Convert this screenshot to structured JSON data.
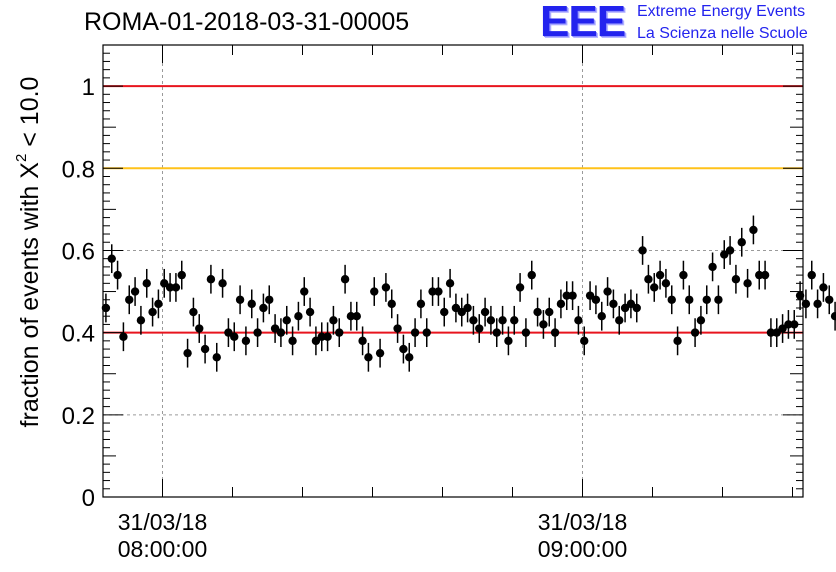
{
  "header": {
    "title": "ROMA-01-2018-03-31-00005",
    "logo_mark": "EEE",
    "logo_line1": "Extreme Energy Events",
    "logo_line2": "La Scienza nelle Scuole"
  },
  "colors": {
    "red_line": "#e8141e",
    "yellow_line": "#ffc21a",
    "points": "#000000",
    "grid": "#9a9a9a",
    "logo": "#2323ee"
  },
  "chart_data": {
    "type": "scatter",
    "title": "ROMA-01-2018-03-31-00005",
    "ylabel": "fraction of events with X² < 10.0",
    "ylabel_parts": {
      "main": "fraction of events with X",
      "sup": "2",
      "tail": " < 10.0"
    },
    "ylim": [
      0,
      1.1
    ],
    "yticks": [
      0,
      0.2,
      0.4,
      0.6,
      0.8,
      1
    ],
    "ytick_labels": [
      "0",
      "0.2",
      "0.4",
      "0.6",
      "0.8",
      "1"
    ],
    "xlim": [
      "2018-03-31 07:51:30",
      "2018-03-31 09:31:30"
    ],
    "xticks": [
      {
        "time": "2018-03-31 08:00:00",
        "label_date": "31/03/18",
        "label_time": "08:00:00"
      },
      {
        "time": "2018-03-31 09:00:00",
        "label_date": "31/03/18",
        "label_time": "09:00:00"
      }
    ],
    "grid": true,
    "reference_lines": [
      {
        "y": 1.0,
        "color": "red"
      },
      {
        "y": 0.8,
        "color": "yellow"
      },
      {
        "y": 0.4,
        "color": "red"
      }
    ],
    "error_bar_halfwidth": 0.035,
    "series": [
      {
        "x_start": "2018-03-31 07:51:30",
        "x_step_seconds": 50,
        "y": [
          0.46,
          0.58,
          0.54,
          0.39,
          0.48,
          0.5,
          0.43,
          0.52,
          0.45,
          0.47,
          0.52,
          0.51,
          0.51,
          0.54,
          0.35,
          0.45,
          0.41,
          0.36,
          0.53,
          0.34,
          0.52,
          0.4,
          0.39,
          0.48,
          0.38,
          0.47,
          0.4,
          0.46,
          0.48,
          0.41,
          0.4,
          0.43,
          0.38,
          0.44,
          0.5,
          0.45,
          0.38,
          0.39,
          0.39,
          0.43,
          0.4,
          0.53,
          0.44,
          0.44,
          0.38,
          0.34,
          0.5,
          0.35,
          0.51,
          0.47,
          0.41,
          0.36,
          0.34,
          0.4,
          0.47,
          0.4,
          0.5,
          0.5,
          0.45,
          0.52,
          0.46,
          0.45,
          0.46,
          0.43,
          0.41,
          0.45,
          0.43,
          0.4,
          0.43,
          0.38,
          0.43,
          0.51,
          0.4,
          0.54,
          0.45,
          0.42,
          0.45,
          0.4,
          0.47,
          0.49,
          0.49,
          0.43,
          0.38,
          0.49,
          0.48,
          0.44,
          0.5,
          0.47,
          0.43,
          0.46,
          0.47,
          0.46,
          0.6,
          0.53,
          0.51,
          0.54,
          0.52,
          0.48,
          0.38,
          0.54,
          0.48,
          0.4,
          0.43,
          0.48,
          0.56,
          0.48,
          0.59,
          0.6,
          0.53,
          0.62,
          0.52,
          0.65,
          0.54,
          0.54,
          0.4,
          0.4,
          0.41,
          0.42,
          0.42,
          0.49,
          0.47,
          0.54,
          0.47,
          0.51,
          0.48,
          0.44
        ]
      }
    ]
  }
}
